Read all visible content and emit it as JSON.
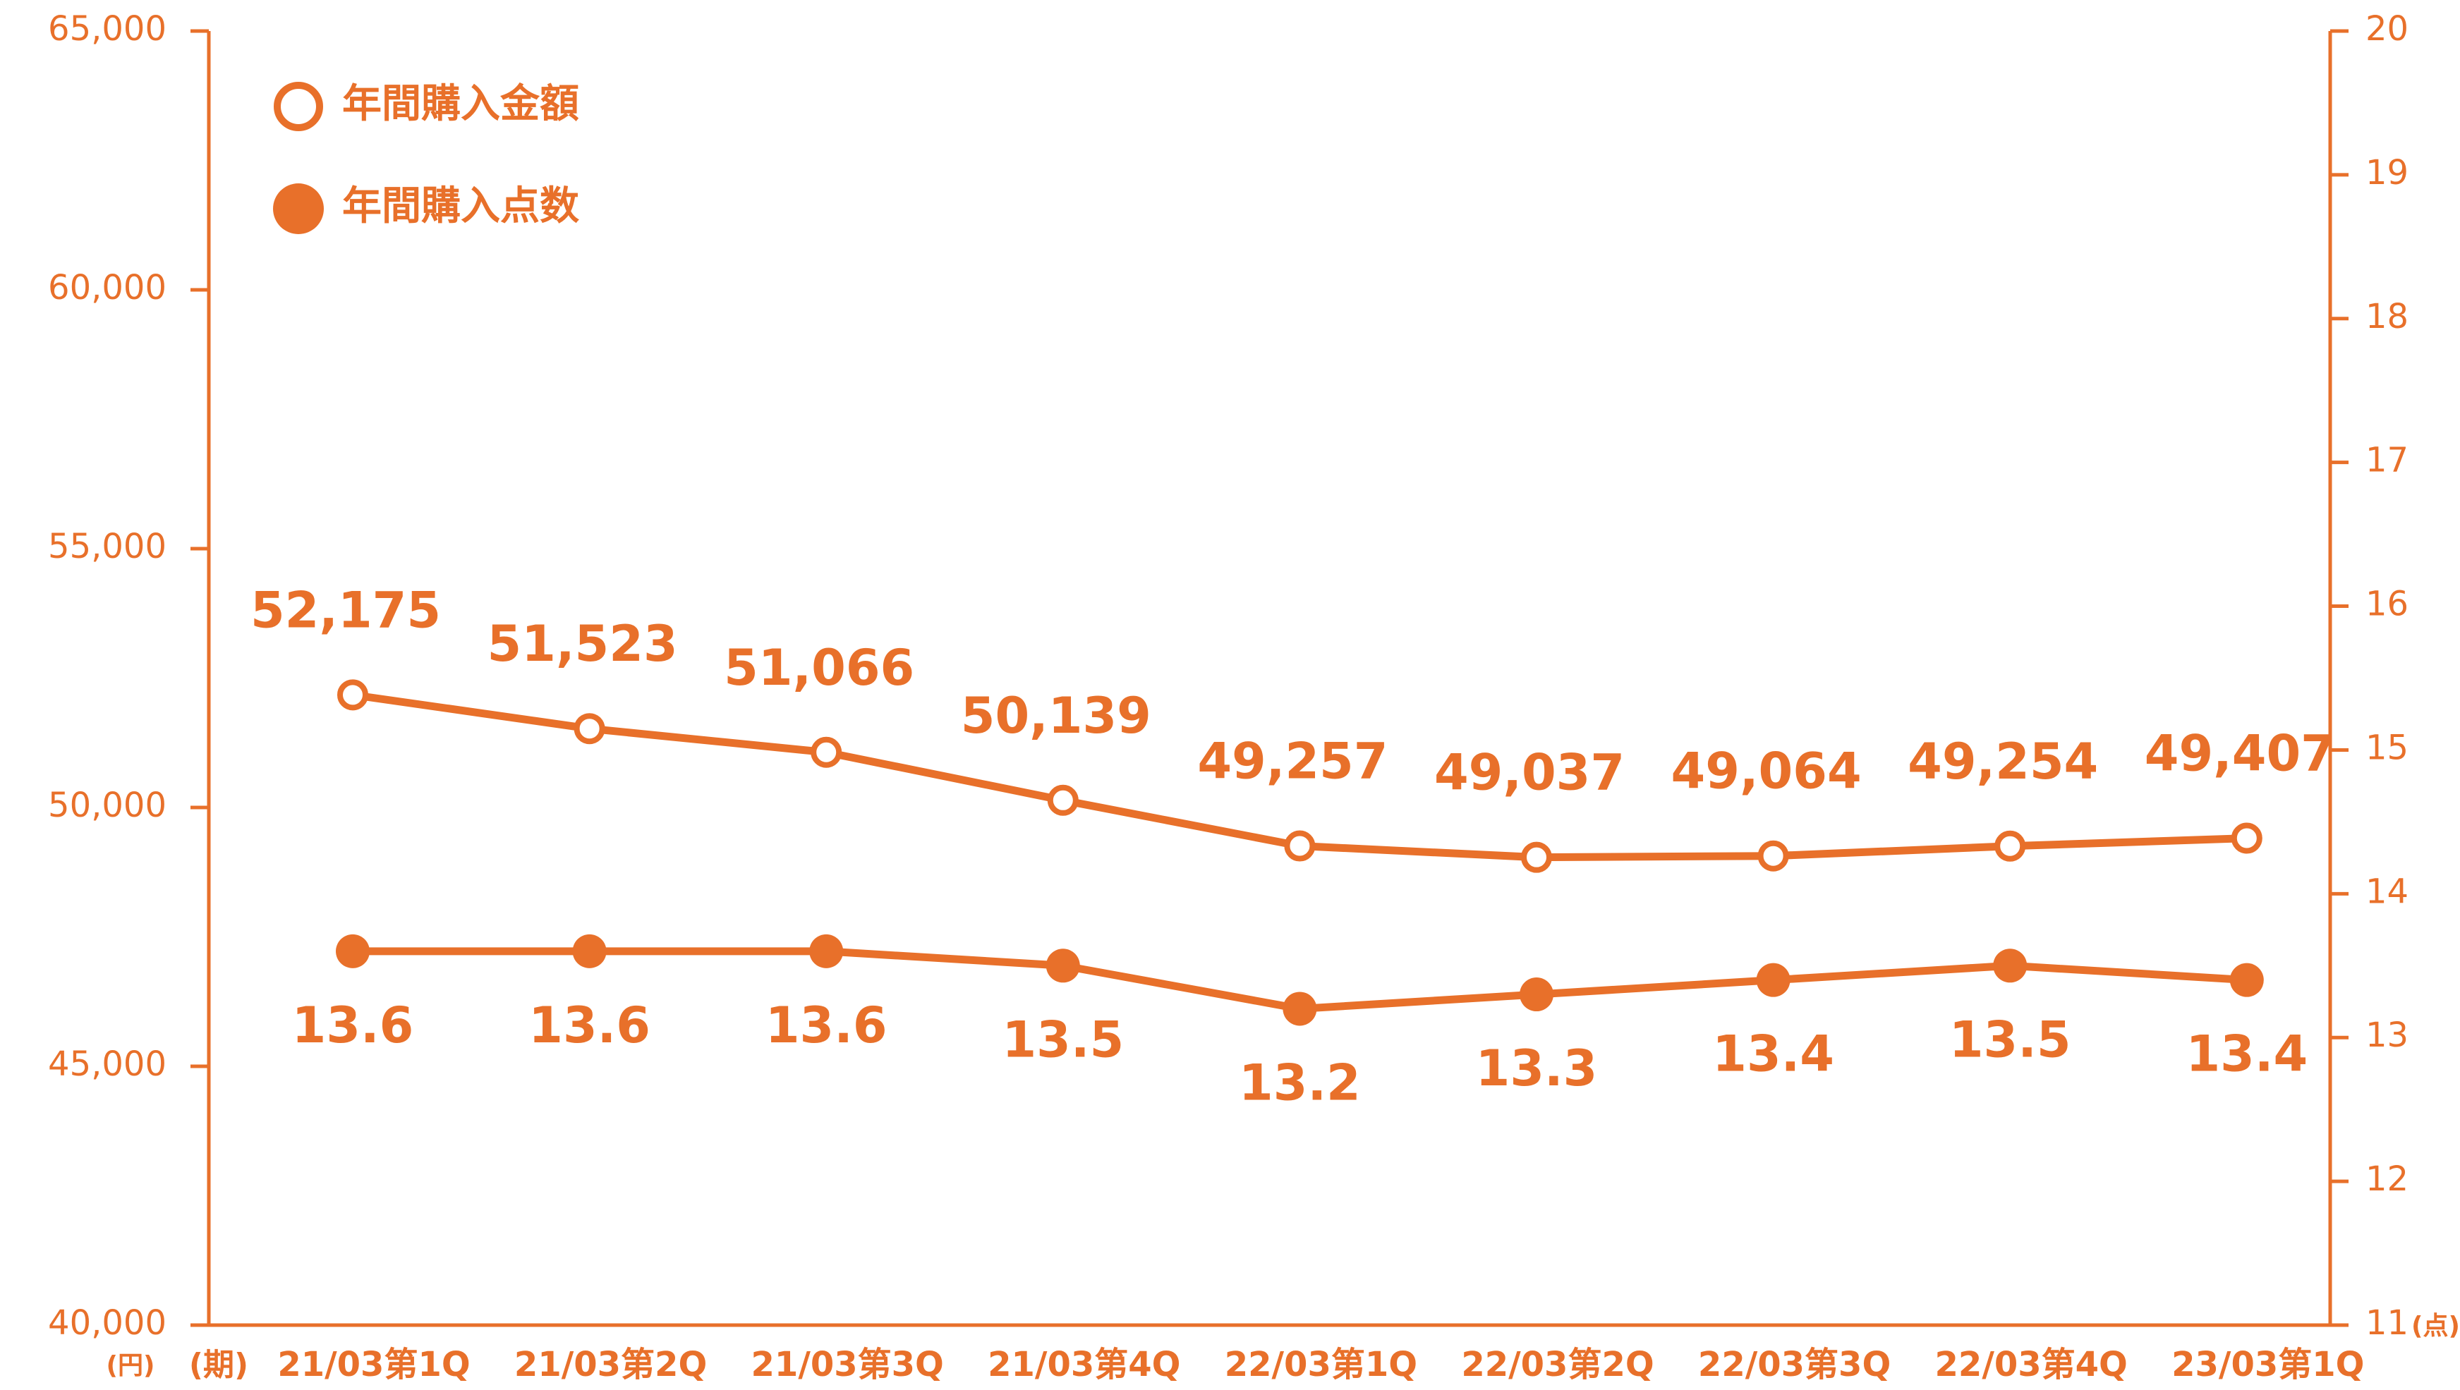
{
  "chart_data": {
    "type": "line",
    "color": "#e8702a",
    "categories": [
      "21/03第1Q",
      "21/03第2Q",
      "21/03第3Q",
      "21/03第4Q",
      "22/03第1Q",
      "22/03第2Q",
      "22/03第3Q",
      "22/03第4Q",
      "23/03第1Q"
    ],
    "x_unit_label": "(期)",
    "y_unit_label": "(円)",
    "y2_unit_label": "(点)",
    "ylim": [
      40000,
      65000
    ],
    "yticks": [
      {
        "value": 40000,
        "label": "40,000"
      },
      {
        "value": 45000,
        "label": "45,000"
      },
      {
        "value": 50000,
        "label": "50,000"
      },
      {
        "value": 55000,
        "label": "55,000"
      },
      {
        "value": 60000,
        "label": "60,000"
      },
      {
        "value": 65000,
        "label": "65,000"
      }
    ],
    "y2lim": [
      11,
      20
    ],
    "y2ticks": [
      11,
      12,
      13,
      14,
      15,
      16,
      17,
      18,
      19,
      20
    ],
    "series": [
      {
        "name": "年間購入金額",
        "color": "#e8702a",
        "marker": "open",
        "axis": "y",
        "values": [
          52175,
          51523,
          51066,
          50139,
          49257,
          49037,
          49064,
          49254,
          49407
        ],
        "value_labels": [
          "52,175",
          "51,523",
          "51,066",
          "50,139",
          "49,257",
          "49,037",
          "49,064",
          "49,254",
          "49,407"
        ]
      },
      {
        "name": "年間購入点数",
        "color": "#e8702a",
        "marker": "filled",
        "axis": "y2",
        "values": [
          13.6,
          13.6,
          13.6,
          13.5,
          13.2,
          13.3,
          13.4,
          13.5,
          13.4
        ]
      }
    ]
  }
}
